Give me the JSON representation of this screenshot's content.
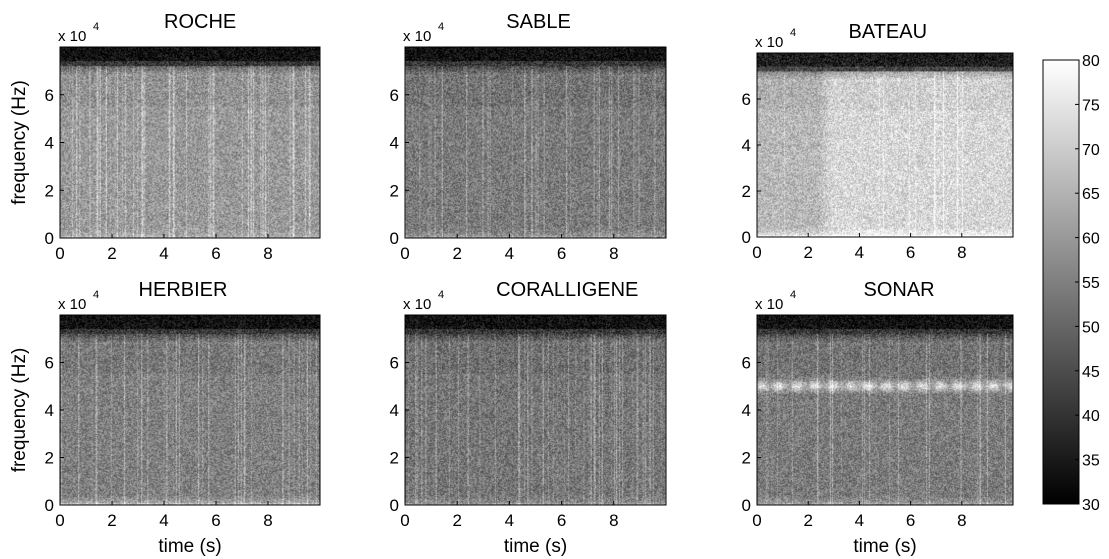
{
  "chart_data": [
    {
      "type": "heatmap",
      "title": "ROCHE",
      "xlabel": "",
      "ylabel": "frequency (Hz)",
      "x_ticks": [
        "0",
        "2",
        "4",
        "6",
        "8"
      ],
      "y_ticks": [
        "0",
        "2",
        "4",
        "6"
      ],
      "y_exponent": "x 10",
      "y_exponent_power": "4",
      "xlim": [
        0,
        10
      ],
      "ylim": [
        0,
        80000
      ],
      "x_unit": "s",
      "mean_level_db": 60,
      "top_band_fade_db": 33,
      "streak_density": 0.16,
      "low_freq_boost_db": 4,
      "tonal_band": null
    },
    {
      "type": "heatmap",
      "title": "SABLE",
      "xlabel": "",
      "ylabel": "",
      "x_ticks": [
        "0",
        "2",
        "4",
        "6",
        "8"
      ],
      "y_ticks": [
        "0",
        "2",
        "4",
        "6"
      ],
      "y_exponent": "x 10",
      "y_exponent_power": "4",
      "xlim": [
        0,
        10
      ],
      "ylim": [
        0,
        80000
      ],
      "x_unit": "s",
      "mean_level_db": 54,
      "top_band_fade_db": 33,
      "streak_density": 0.12,
      "low_freq_boost_db": 5,
      "tonal_band": null
    },
    {
      "type": "heatmap",
      "title": "BATEAU",
      "xlabel": "",
      "ylabel": "",
      "x_ticks": [
        "0",
        "2",
        "4",
        "6",
        "8"
      ],
      "y_ticks": [
        "0",
        "2",
        "4",
        "6"
      ],
      "y_exponent": "x 10",
      "y_exponent_power": "4",
      "xlim": [
        0,
        10
      ],
      "ylim": [
        0,
        80000
      ],
      "x_unit": "s",
      "mean_level_db": 66,
      "top_band_fade_db": 36,
      "streak_density": 0.05,
      "low_freq_boost_db": 8,
      "tonal_band": null,
      "loud_interval_s": [
        2.4,
        10
      ],
      "loud_boost_db": 6
    },
    {
      "type": "heatmap",
      "title": "HERBIER",
      "xlabel": "time (s)",
      "ylabel": "frequency (Hz)",
      "x_ticks": [
        "0",
        "2",
        "4",
        "6",
        "8"
      ],
      "y_ticks": [
        "0",
        "2",
        "4",
        "6"
      ],
      "y_exponent": "x 10",
      "y_exponent_power": "4",
      "xlim": [
        0,
        10
      ],
      "ylim": [
        0,
        80000
      ],
      "x_unit": "s",
      "mean_level_db": 55,
      "top_band_fade_db": 33,
      "streak_density": 0.1,
      "low_freq_boost_db": 9,
      "tonal_band": null
    },
    {
      "type": "heatmap",
      "title": "CORALLIGENE",
      "xlabel": "time (s)",
      "ylabel": "",
      "x_ticks": [
        "0",
        "2",
        "4",
        "6",
        "8"
      ],
      "y_ticks": [
        "0",
        "2",
        "4",
        "6"
      ],
      "y_exponent": "x 10",
      "y_exponent_power": "4",
      "xlim": [
        0,
        10
      ],
      "ylim": [
        0,
        80000
      ],
      "x_unit": "s",
      "mean_level_db": 53,
      "top_band_fade_db": 33,
      "streak_density": 0.22,
      "low_freq_boost_db": 5,
      "tonal_band": null
    },
    {
      "type": "heatmap",
      "title": "SONAR",
      "xlabel": "time (s)",
      "ylabel": "",
      "x_ticks": [
        "0",
        "2",
        "4",
        "6",
        "8"
      ],
      "y_ticks": [
        "0",
        "2",
        "4",
        "6"
      ],
      "y_exponent": "x 10",
      "y_exponent_power": "4",
      "xlim": [
        0,
        10
      ],
      "ylim": [
        0,
        80000
      ],
      "x_unit": "s",
      "mean_level_db": 54,
      "top_band_fade_db": 33,
      "streak_density": 0.12,
      "low_freq_boost_db": 6,
      "tonal_band": {
        "center_hz": 50000,
        "width_hz": 3500,
        "level_db": 76
      }
    }
  ],
  "colorbar": {
    "colormap": "gray",
    "range": [
      30,
      80
    ],
    "ticks": [
      "80",
      "75",
      "70",
      "65",
      "60",
      "55",
      "50",
      "45",
      "40",
      "35",
      "30"
    ],
    "low_color": "#000000",
    "high_color": "#ffffff"
  }
}
